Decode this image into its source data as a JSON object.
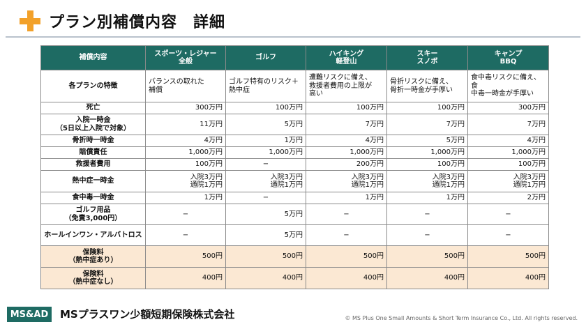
{
  "title": "プラン別補償内容　詳細",
  "table": {
    "header": [
      "補償内容",
      "スポーツ・レジャー\n全般",
      "ゴルフ",
      "ハイキング\n軽登山",
      "スキー\nスノボ",
      "キャンプ\nBBQ"
    ],
    "features": {
      "label": "各プランの特徴",
      "cells": [
        "バランスの取れた\n補償",
        "ゴルフ特有のリスク＋\n熱中症",
        "遭難リスクに備え、\n救援者費用の上限が\n高い",
        "骨折リスクに備え、\n骨折一時金が手厚い",
        "食中毒リスクに備え、食\n中毒一時金が手厚い"
      ]
    },
    "rows": [
      {
        "label": "死亡",
        "cells": [
          "300万円",
          "100万円",
          "100万円",
          "100万円",
          "300万円"
        ]
      },
      {
        "label": "入院一時金\n（5日以上入院で対象）",
        "cells": [
          "11万円",
          "5万円",
          "7万円",
          "7万円",
          "7万円"
        ]
      },
      {
        "label": "骨折時一時金",
        "cells": [
          "4万円",
          "1万円",
          "4万円",
          "5万円",
          "4万円"
        ]
      },
      {
        "label": "賠償責任",
        "cells": [
          "1,000万円",
          "1,000万円",
          "1,000万円",
          "1,000万円",
          "1,000万円"
        ]
      },
      {
        "label": "救援者費用",
        "cells": [
          "100万円",
          "−",
          "200万円",
          "100万円",
          "100万円"
        ]
      },
      {
        "label": "熱中症一時金",
        "cells": [
          "入院3万円\n通院1万円",
          "入院3万円\n通院1万円",
          "入院3万円\n通院1万円",
          "入院3万円\n通院1万円",
          "入院3万円\n通院1万円"
        ]
      },
      {
        "label": "食中毒一時金",
        "cells": [
          "1万円",
          "−",
          "1万円",
          "1万円",
          "2万円"
        ]
      },
      {
        "label": "ゴルフ用品\n（免責3,000円）",
        "cells": [
          "−",
          "5万円",
          "−",
          "−",
          "−"
        ]
      },
      {
        "label": "ホールインワン・アルバトロス",
        "cells": [
          "−",
          "5万円",
          "−",
          "−",
          "−"
        ]
      }
    ],
    "premiums": [
      {
        "label": "保険料\n（熱中症あり）",
        "cells": [
          "500円",
          "500円",
          "500円",
          "500円",
          "500円"
        ]
      },
      {
        "label": "保険料\n（熱中症なし）",
        "cells": [
          "400円",
          "400円",
          "400円",
          "400円",
          "400円"
        ]
      }
    ]
  },
  "footer": {
    "logo": "MS&AD",
    "company": "MSプラスワン少額短期保険株式会社",
    "copyright": "© MS Plus One Small Amounts & Short Term Insurance Co., Ltd. All rights reserved."
  },
  "colors": {
    "header_bg": "#1e6b63",
    "premium_bg": "#fbe8d3",
    "accent": "#f2a12a"
  }
}
